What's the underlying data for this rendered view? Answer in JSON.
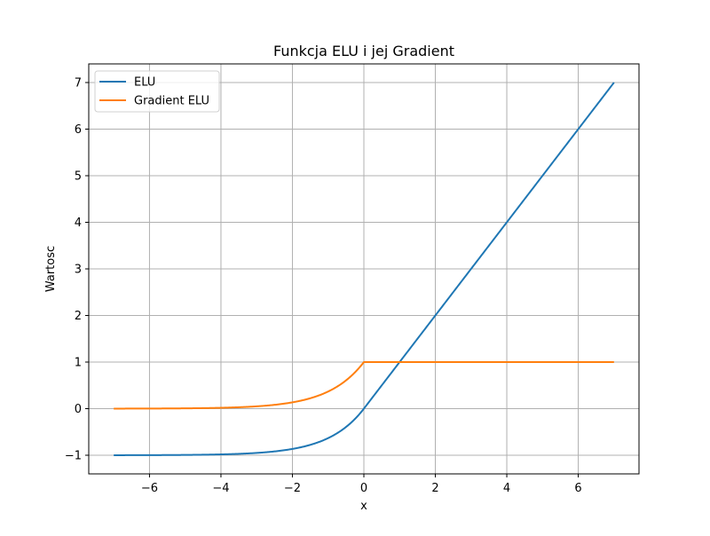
{
  "chart_data": {
    "type": "line",
    "title": "Funkcja ELU i jej Gradient",
    "xlabel": "x",
    "ylabel": "Wartosc",
    "xlim": [
      -7.7,
      7.7
    ],
    "ylim": [
      -1.4,
      7.4
    ],
    "xticks": [
      -6,
      -4,
      -2,
      0,
      2,
      4,
      6
    ],
    "xtick_labels": [
      "−6",
      "−4",
      "−2",
      "0",
      "2",
      "4",
      "6"
    ],
    "yticks": [
      -1,
      0,
      1,
      2,
      3,
      4,
      5,
      6,
      7
    ],
    "ytick_labels": [
      "−1",
      "0",
      "1",
      "2",
      "3",
      "4",
      "5",
      "6",
      "7"
    ],
    "grid": true,
    "legend_position": "top-left",
    "alpha": 1.0,
    "x_range": [
      -7,
      7
    ],
    "series": [
      {
        "name": "ELU",
        "color": "#1f77b4",
        "function": "elu",
        "points": [
          {
            "x": -7,
            "y": -0.999
          },
          {
            "x": -6,
            "y": -0.998
          },
          {
            "x": -4,
            "y": -0.982
          },
          {
            "x": -2,
            "y": -0.865
          },
          {
            "x": -1,
            "y": -0.632
          },
          {
            "x": 0,
            "y": 0
          },
          {
            "x": 1,
            "y": 1
          },
          {
            "x": 2,
            "y": 2
          },
          {
            "x": 4,
            "y": 4
          },
          {
            "x": 6,
            "y": 6
          },
          {
            "x": 7,
            "y": 7
          }
        ]
      },
      {
        "name": "Gradient ELU",
        "color": "#ff7f0e",
        "function": "elu_gradient",
        "points": [
          {
            "x": -7,
            "y": 0.001
          },
          {
            "x": -6,
            "y": 0.002
          },
          {
            "x": -4,
            "y": 0.018
          },
          {
            "x": -2,
            "y": 0.135
          },
          {
            "x": -1,
            "y": 0.368
          },
          {
            "x": 0,
            "y": 1
          },
          {
            "x": 2,
            "y": 1
          },
          {
            "x": 4,
            "y": 1
          },
          {
            "x": 6,
            "y": 1
          },
          {
            "x": 7,
            "y": 1
          }
        ]
      }
    ]
  }
}
